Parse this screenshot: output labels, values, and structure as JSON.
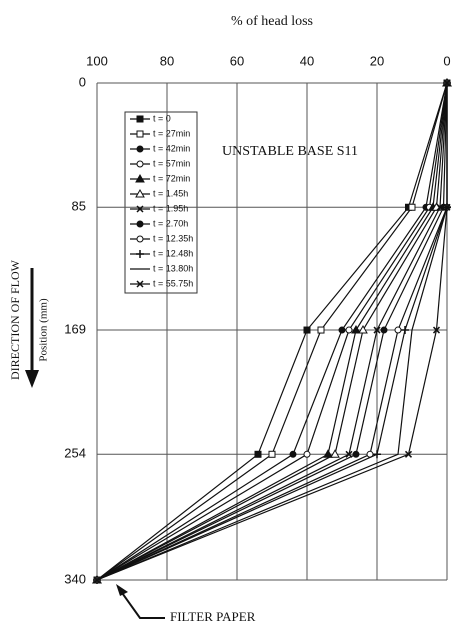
{
  "chart_data": {
    "type": "line",
    "title": "% of head loss",
    "ylabel": "Position (mm)",
    "annotations": [
      "UNSTABLE BASE S11",
      "DIRECTION OF FLOW",
      "FILTER PAPER"
    ],
    "y": [
      0,
      85,
      169,
      254,
      340
    ],
    "xlim": [
      100,
      0
    ],
    "xticks": [
      100,
      80,
      60,
      40,
      20,
      0
    ],
    "ylim": [
      0,
      340
    ],
    "yticks": [
      0,
      85,
      169,
      254,
      340
    ],
    "grid": true,
    "color": "#111",
    "series": [
      {
        "name": "t = 0",
        "values": [
          0,
          11,
          40,
          54,
          100
        ]
      },
      {
        "name": "t = 27min",
        "values": [
          0,
          10,
          36,
          50,
          100
        ]
      },
      {
        "name": "t = 42min",
        "values": [
          0,
          6,
          30,
          44,
          100
        ]
      },
      {
        "name": "t = 57min",
        "values": [
          0,
          5,
          28,
          40,
          100
        ]
      },
      {
        "name": "t = 72min",
        "values": [
          0,
          4,
          26,
          34,
          100
        ]
      },
      {
        "name": "t = 1.45h",
        "values": [
          0,
          3,
          24,
          32,
          100
        ]
      },
      {
        "name": "t = 1.95h",
        "values": [
          0,
          2,
          20,
          28,
          100
        ]
      },
      {
        "name": "t = 2.70h",
        "values": [
          0,
          1,
          18,
          26,
          100
        ]
      },
      {
        "name": "t = 12.35h",
        "values": [
          0,
          0,
          14,
          22,
          100
        ]
      },
      {
        "name": "t = 12.48h",
        "values": [
          0,
          0,
          12,
          20,
          100
        ]
      },
      {
        "name": "t = 13.80h",
        "values": [
          0,
          0,
          10,
          14,
          100
        ]
      },
      {
        "name": "t = 55.75h",
        "values": [
          0,
          0,
          3,
          11,
          100
        ]
      }
    ]
  }
}
